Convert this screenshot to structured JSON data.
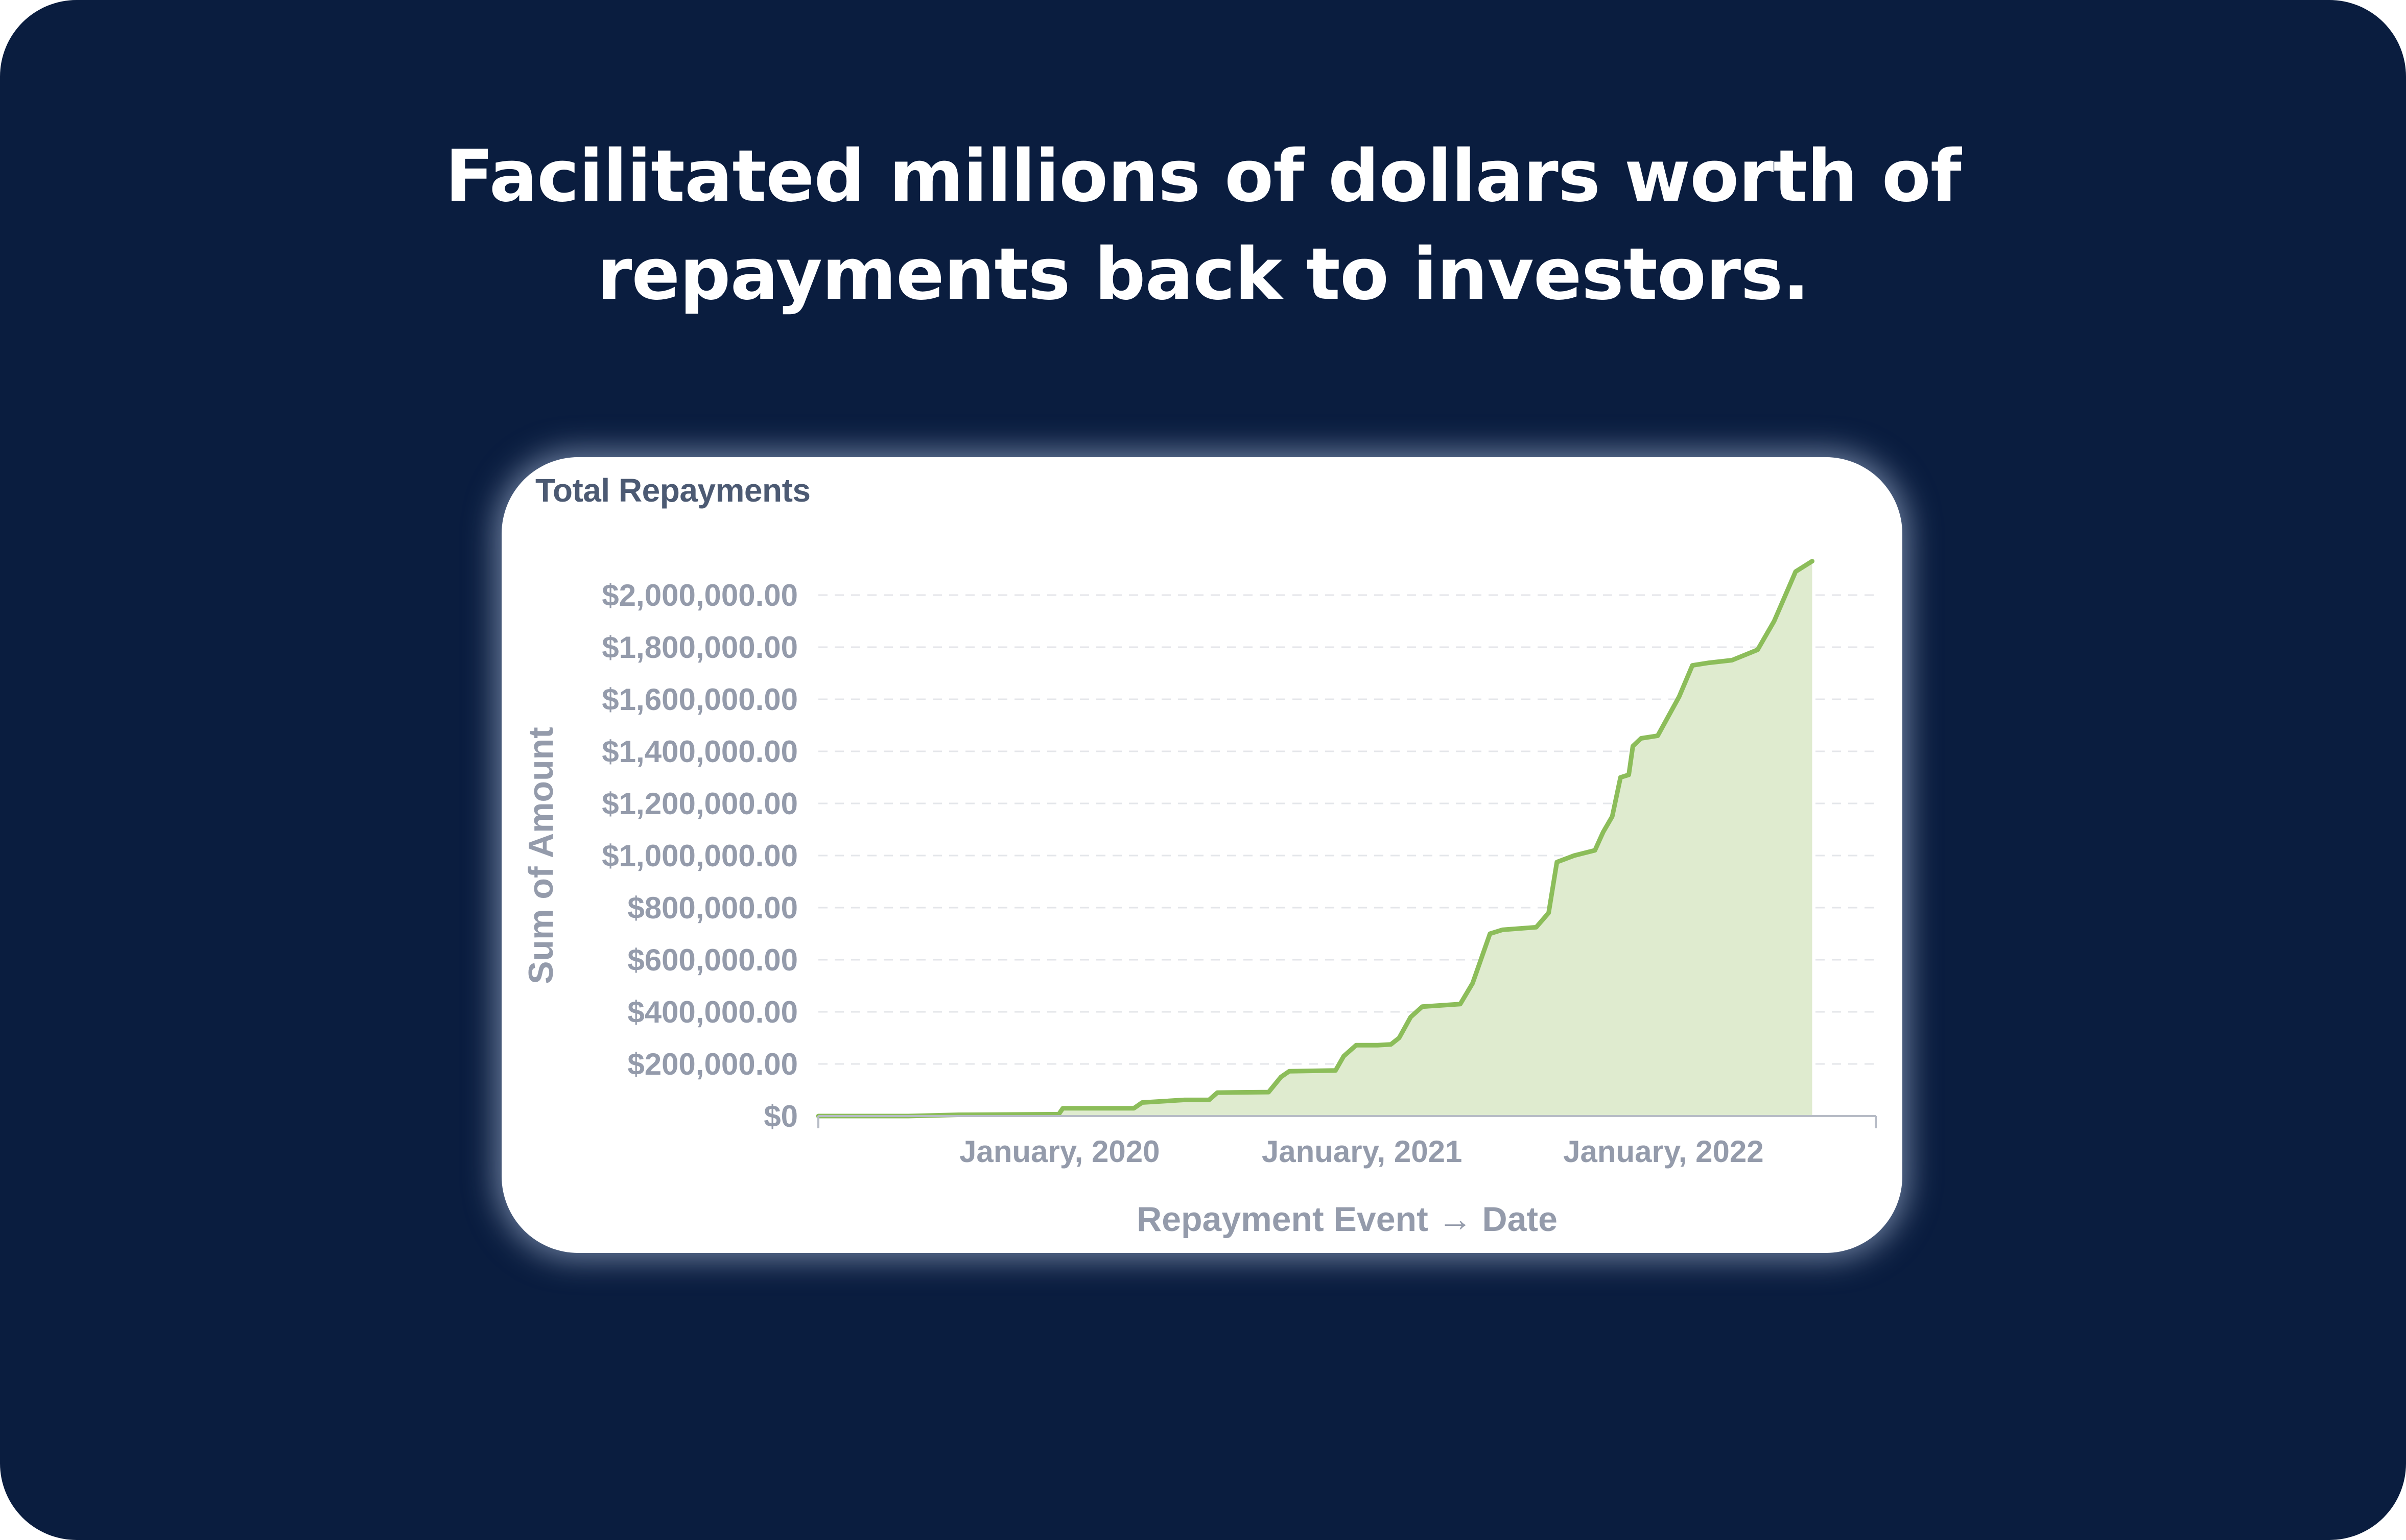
{
  "headline": {
    "line1": "Facilitated millions of dollars worth of",
    "line2": "repayments back to investors."
  },
  "colors": {
    "background": "#0a1d3f",
    "card": "#ffffff",
    "line": "#8cbd5a",
    "fill": "#dfebcf",
    "grid": "#e4e6ea",
    "tick_text": "#949bab",
    "title_text": "#4c5a73"
  },
  "chart_data": {
    "type": "area",
    "title": "Total Repayments",
    "xlabel": "Repayment Event → Date",
    "ylabel": "Sum of Amount",
    "ylim": [
      0,
      2000000
    ],
    "grid": true,
    "y_ticks": [
      {
        "value": 0,
        "label": "$0"
      },
      {
        "value": 200000,
        "label": "$200,000.00"
      },
      {
        "value": 400000,
        "label": "$400,000.00"
      },
      {
        "value": 600000,
        "label": "$600,000.00"
      },
      {
        "value": 800000,
        "label": "$800,000.00"
      },
      {
        "value": 1000000,
        "label": "$1,000,000.00"
      },
      {
        "value": 1200000,
        "label": "$1,200,000.00"
      },
      {
        "value": 1400000,
        "label": "$1,400,000.00"
      },
      {
        "value": 1600000,
        "label": "$1,600,000.00"
      },
      {
        "value": 1800000,
        "label": "$1,800,000.00"
      },
      {
        "value": 2000000,
        "label": "$2,000,000.00"
      }
    ],
    "x_range": [
      "2019-03-15",
      "2022-09-15"
    ],
    "x_ticks": [
      {
        "value": "2020-01-01",
        "label": "January, 2020"
      },
      {
        "value": "2021-01-01",
        "label": "January, 2021"
      },
      {
        "value": "2022-01-01",
        "label": "January, 2022"
      }
    ],
    "series": [
      {
        "points": [
          [
            "2019-03-15",
            0
          ],
          [
            "2019-07-01",
            0
          ],
          [
            "2019-09-01",
            5000
          ],
          [
            "2019-12-31",
            7000
          ],
          [
            "2020-01-05",
            30000
          ],
          [
            "2020-03-31",
            30000
          ],
          [
            "2020-04-10",
            52000
          ],
          [
            "2020-05-31",
            62000
          ],
          [
            "2020-06-30",
            62000
          ],
          [
            "2020-07-10",
            90000
          ],
          [
            "2020-09-10",
            92000
          ],
          [
            "2020-09-25",
            150000
          ],
          [
            "2020-10-05",
            172000
          ],
          [
            "2020-11-30",
            175000
          ],
          [
            "2020-12-10",
            230000
          ],
          [
            "2020-12-25",
            272000
          ],
          [
            "2021-01-20",
            272000
          ],
          [
            "2021-02-05",
            275000
          ],
          [
            "2021-02-15",
            300000
          ],
          [
            "2021-03-01",
            380000
          ],
          [
            "2021-03-15",
            420000
          ],
          [
            "2021-04-30",
            430000
          ],
          [
            "2021-05-15",
            510000
          ],
          [
            "2021-06-05",
            700000
          ],
          [
            "2021-06-20",
            715000
          ],
          [
            "2021-07-31",
            725000
          ],
          [
            "2021-08-15",
            780000
          ],
          [
            "2021-08-25",
            975000
          ],
          [
            "2021-09-15",
            1000000
          ],
          [
            "2021-10-10",
            1020000
          ],
          [
            "2021-10-20",
            1090000
          ],
          [
            "2021-10-31",
            1150000
          ],
          [
            "2021-11-10",
            1300000
          ],
          [
            "2021-11-20",
            1310000
          ],
          [
            "2021-11-25",
            1420000
          ],
          [
            "2021-12-05",
            1450000
          ],
          [
            "2021-12-25",
            1460000
          ],
          [
            "2022-01-20",
            1610000
          ],
          [
            "2022-02-05",
            1730000
          ],
          [
            "2022-02-25",
            1740000
          ],
          [
            "2022-03-25",
            1750000
          ],
          [
            "2022-04-25",
            1790000
          ],
          [
            "2022-05-15",
            1900000
          ],
          [
            "2022-06-10",
            2090000
          ],
          [
            "2022-06-30",
            2130000
          ]
        ]
      }
    ]
  }
}
